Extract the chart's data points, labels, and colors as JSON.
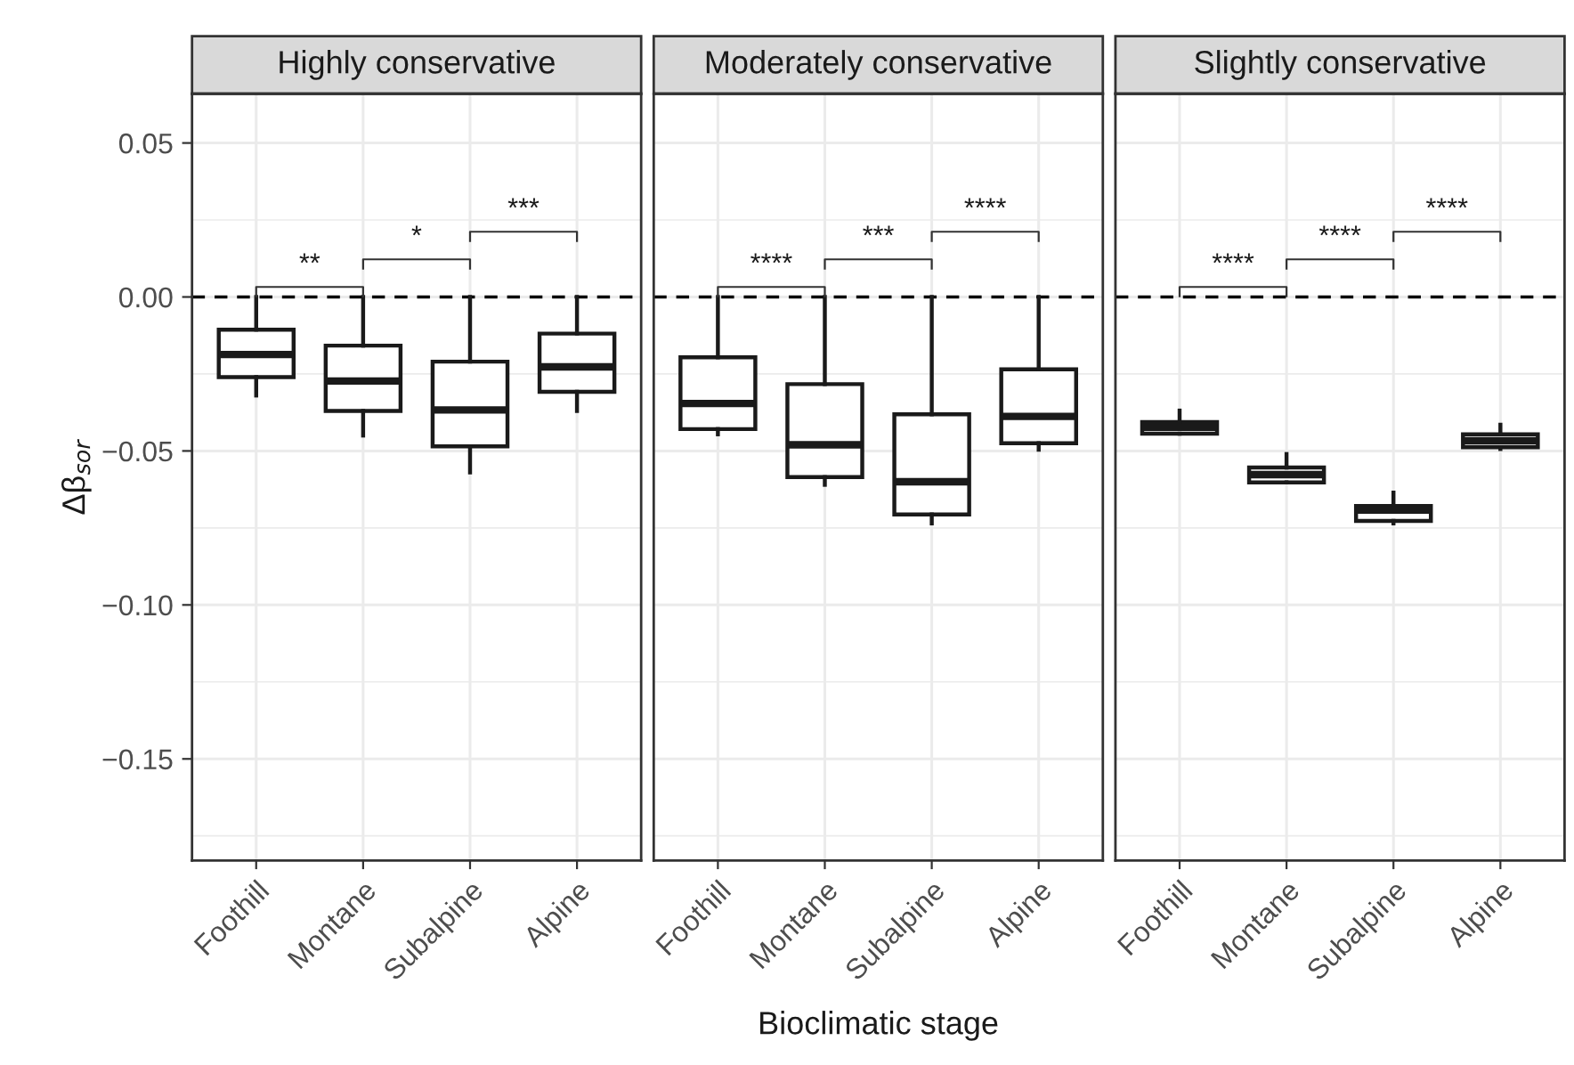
{
  "chart_data": [
    {
      "type": "box",
      "title": "Highly conservative",
      "ylabel": "Δβ$_{sor}$",
      "categories": [
        "Foothill",
        "Montane",
        "Subalpine",
        "Alpine"
      ],
      "boxes": [
        {
          "low": -0.032,
          "q1": -0.026,
          "median": -0.0187,
          "q3": -0.0106,
          "high": 0.0
        },
        {
          "low": -0.045,
          "q1": -0.037,
          "median": -0.0273,
          "q3": -0.0158,
          "high": 0.0
        },
        {
          "low": -0.057,
          "q1": -0.0485,
          "median": -0.0367,
          "q3": -0.021,
          "high": 0.0
        },
        {
          "low": -0.037,
          "q1": -0.0308,
          "median": -0.0227,
          "q3": -0.0119,
          "high": 0.0
        }
      ],
      "ylim": [
        -0.183,
        0.066
      ],
      "yticks": [
        {
          "value": 0.05,
          "label": "0.05"
        },
        {
          "value": 0.0,
          "label": "0.00"
        },
        {
          "value": -0.05,
          "label": "−0.05"
        },
        {
          "value": -0.1,
          "label": "−0.10"
        },
        {
          "value": -0.15,
          "label": "−0.15"
        }
      ],
      "ref_lines": [
        {
          "axis": "y",
          "value": 0,
          "line_style": "dashed",
          "color": "#000000"
        }
      ],
      "annotations": [
        "**",
        "*",
        "***"
      ],
      "grid": true
    },
    {
      "type": "box",
      "title": "Moderately conservative",
      "xlabel": "Bioclimatic stage",
      "categories": [
        "Foothill",
        "Montane",
        "Subalpine",
        "Alpine"
      ],
      "boxes": [
        {
          "low": -0.0446,
          "q1": -0.0429,
          "median": -0.0346,
          "q3": -0.0196,
          "high": 0.0
        },
        {
          "low": -0.061,
          "q1": -0.0585,
          "median": -0.048,
          "q3": -0.0283,
          "high": 0.0
        },
        {
          "low": -0.0735,
          "q1": -0.0706,
          "median": -0.06,
          "q3": -0.0381,
          "high": 0.0
        },
        {
          "low": -0.0496,
          "q1": -0.0475,
          "median": -0.0388,
          "q3": -0.0235,
          "high": 0.0
        }
      ],
      "ylim": [
        -0.183,
        0.066
      ],
      "yticks": [
        0.05,
        0.0,
        -0.05,
        -0.1,
        -0.15
      ],
      "tick_labels": "x",
      "ref_lines": [
        {
          "axis": "y",
          "value": 0,
          "line_style": "dashed",
          "color": "#000000"
        }
      ],
      "annotations": [
        "****",
        "***",
        "****"
      ],
      "grid": true
    },
    {
      "type": "box",
      "title": "Slightly conservative",
      "categories": [
        "Foothill",
        "Montane",
        "Subalpine",
        "Alpine"
      ],
      "boxes": [
        {
          "low": -0.0444,
          "q1": -0.0444,
          "median": -0.0423,
          "q3": -0.0406,
          "high": -0.0369
        },
        {
          "low": -0.0602,
          "q1": -0.0602,
          "median": -0.0577,
          "q3": -0.0554,
          "high": -0.051
        },
        {
          "low": -0.0735,
          "q1": -0.0727,
          "median": -0.0692,
          "q3": -0.0679,
          "high": -0.0635
        },
        {
          "low": -0.0494,
          "q1": -0.0488,
          "median": -0.0467,
          "q3": -0.0446,
          "high": -0.0415
        }
      ],
      "ylim": [
        -0.183,
        0.066
      ],
      "yticks": [
        0.05,
        0.0,
        -0.05,
        -0.1,
        -0.15
      ],
      "tick_labels": "x",
      "ref_lines": [
        {
          "axis": "y",
          "value": 0,
          "line_style": "dashed",
          "color": "#000000"
        }
      ],
      "annotations": [
        "****",
        "****",
        "****"
      ],
      "grid": true
    }
  ]
}
